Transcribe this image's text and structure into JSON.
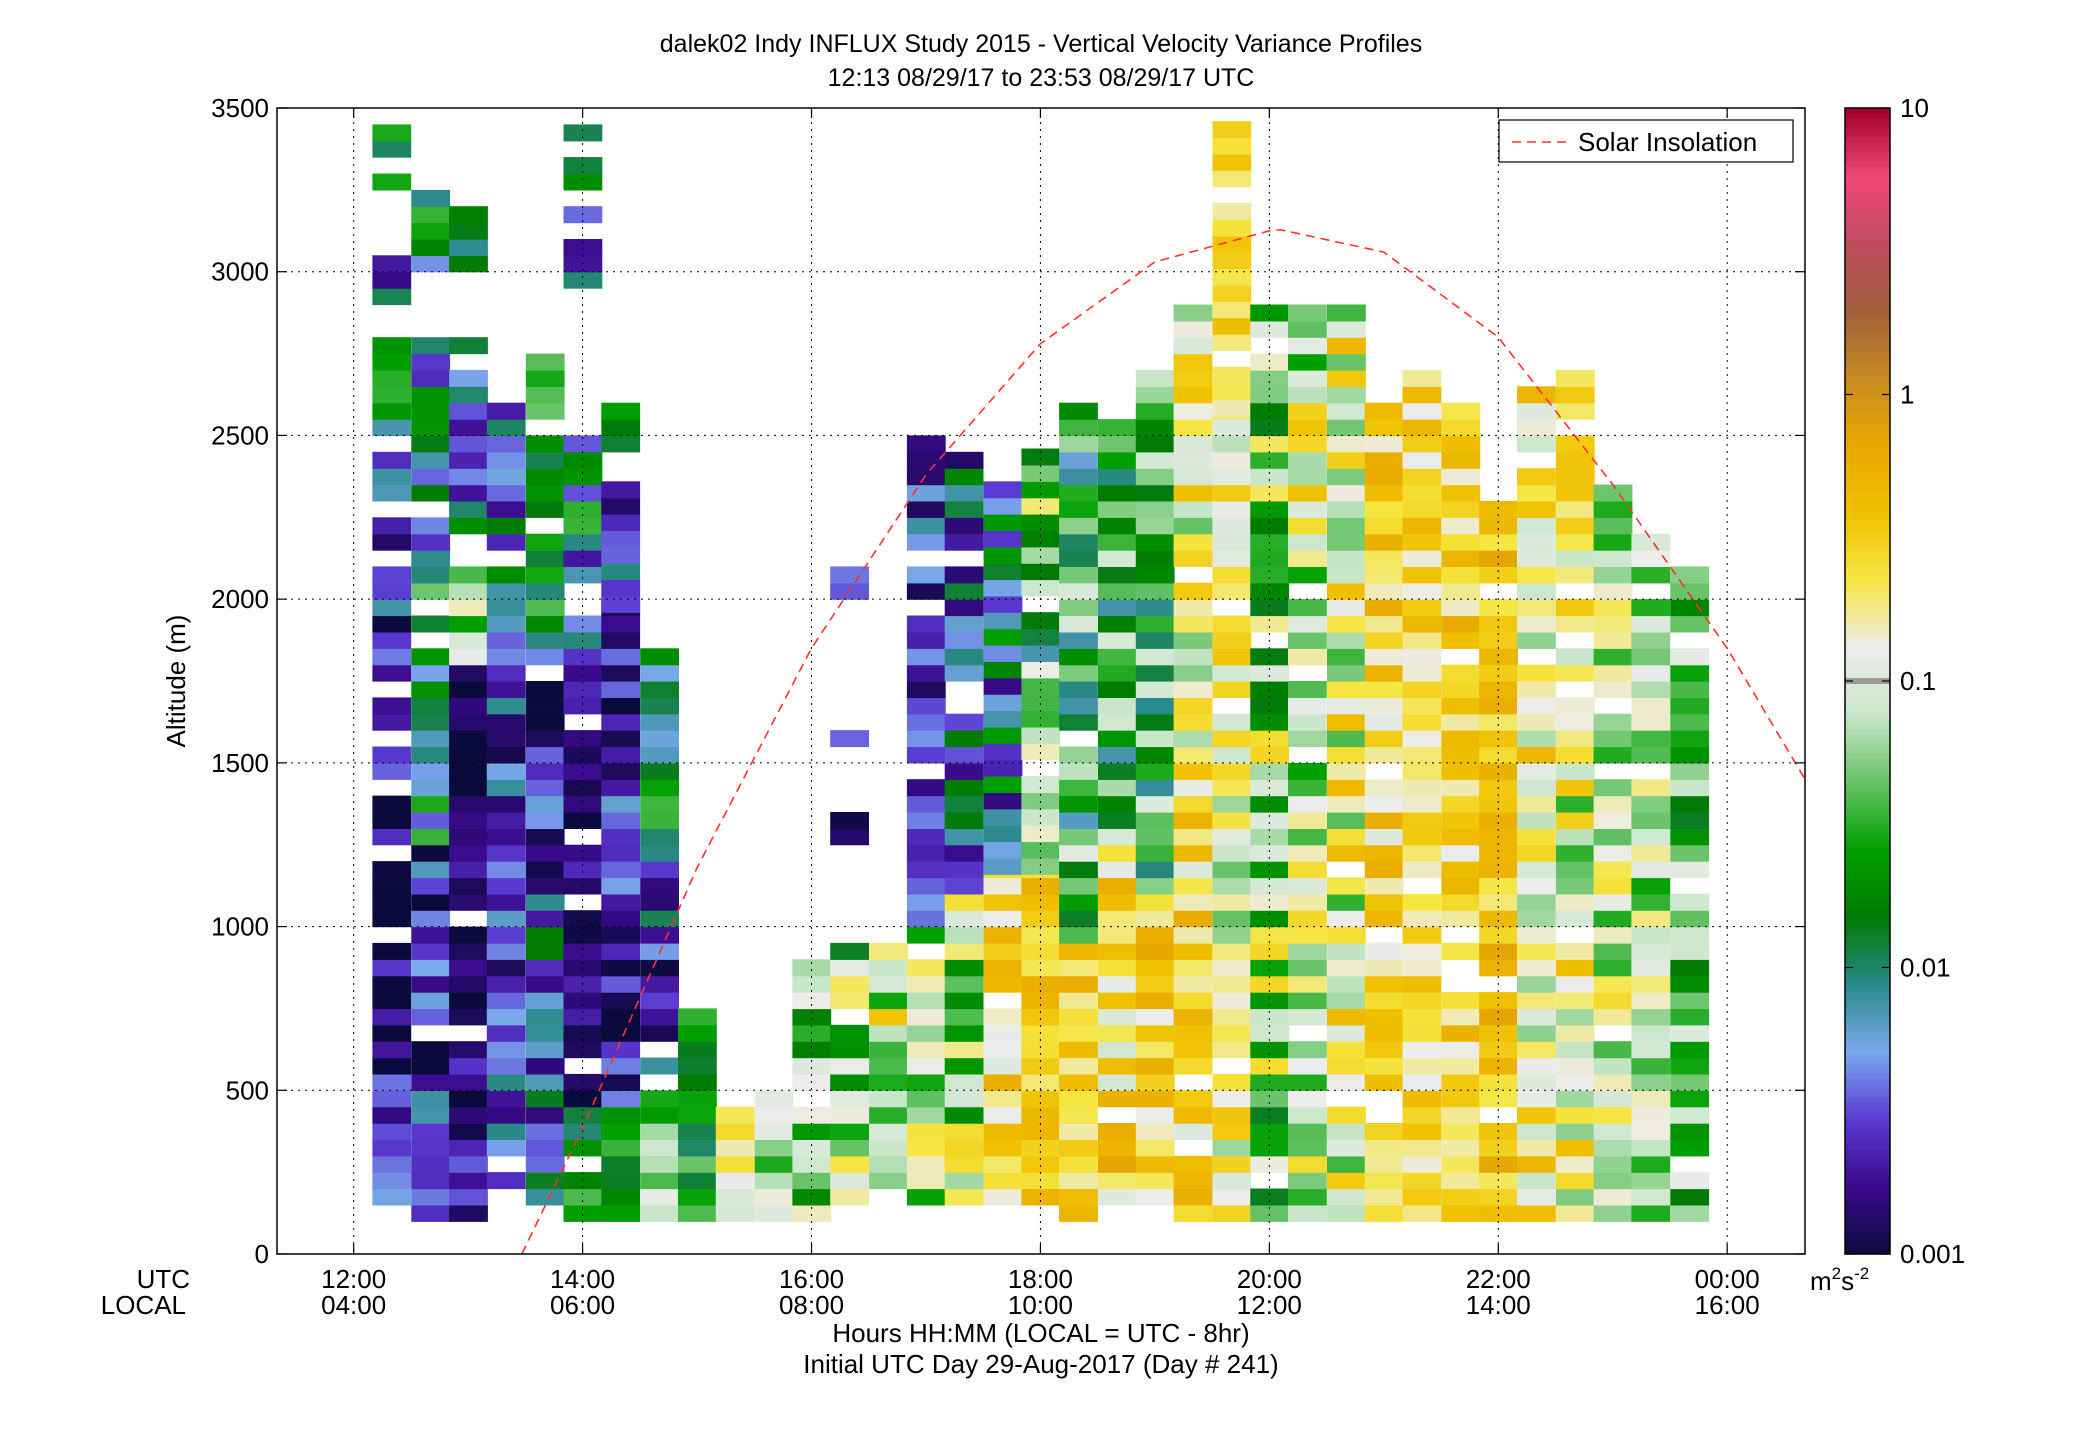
{
  "chart_data": {
    "type": "heatmap",
    "title": "dalek02 Indy INFLUX Study 2015 - Vertical Velocity Variance Profiles",
    "subtitle": "12:13 08/29/17 to 23:53 08/29/17  UTC",
    "ylabel": "Altitude (m)",
    "xlabel_line1": "Hours HH:MM  (LOCAL = UTC - 8hr)",
    "xlabel_line2": "Initial UTC Day 29-Aug-2017 (Day # 241)",
    "x_row_label_utc": "UTC",
    "x_row_label_local": "LOCAL",
    "x_range_hours": [
      11.33,
      24.68
    ],
    "y_range_m": [
      0,
      3500
    ],
    "xticks_hours": [
      12,
      14,
      16,
      18,
      20,
      22,
      24
    ],
    "xtick_labels_utc": [
      "12:00",
      "14:00",
      "16:00",
      "18:00",
      "20:00",
      "22:00",
      "00:00"
    ],
    "xtick_labels_local": [
      "04:00",
      "06:00",
      "08:00",
      "10:00",
      "12:00",
      "14:00",
      "16:00"
    ],
    "yticks": [
      0,
      500,
      1000,
      1500,
      2000,
      2500,
      3000,
      3500
    ],
    "ytick_labels": [
      "0",
      "500",
      "1000",
      "1500",
      "2000",
      "2500",
      "3000",
      "3500"
    ],
    "grid": true,
    "colorbar": {
      "scale": "log",
      "range": [
        0.001,
        10
      ],
      "ticks": [
        0.001,
        0.01,
        0.1,
        1,
        10
      ],
      "tick_labels": [
        "0.001",
        "0.01",
        "0.1",
        "1",
        "10"
      ],
      "units_base": "m",
      "units_exp1": "2",
      "units_mid": "s",
      "units_exp2": "-2",
      "colors": [
        "#0a0a3c",
        "#3a0a8c",
        "#5a3ad2",
        "#7aa8ec",
        "#2a8a8a",
        "#007a00",
        "#00a000",
        "#66c266",
        "#c8e6c8",
        "#ececec",
        "#f5e642",
        "#f0c000",
        "#e8a800",
        "#c88a20",
        "#a0603a",
        "#c04a60",
        "#f04878",
        "#a00028"
      ]
    },
    "legend": {
      "position": "top-right",
      "entries": [
        {
          "name": "Solar Insolation",
          "color": "#ff3030",
          "style": "dashed"
        }
      ]
    },
    "solar_insolation_curve": {
      "x_hours": [
        13.47,
        14,
        15,
        16,
        17,
        18,
        19,
        20,
        20.1,
        21,
        22,
        23,
        24,
        24.68
      ],
      "y": [
        0,
        385,
        1180,
        1850,
        2380,
        2780,
        3030,
        3125,
        3128,
        3060,
        2800,
        2350,
        1850,
        1450
      ]
    },
    "range_gate_m": 50,
    "time_step_min": 20,
    "x_hours": [
      12.33,
      12.67,
      13,
      13.33,
      13.67,
      14,
      14.33,
      14.67,
      15,
      15.33,
      15.67,
      16,
      16.33,
      16.67,
      17,
      17.33,
      17.67,
      18,
      18.33,
      18.67,
      19,
      19.33,
      19.67,
      20,
      20.33,
      20.67,
      21,
      21.33,
      21.67,
      22,
      22.33,
      22.67,
      23,
      23.33,
      23.67
    ],
    "log10_variance_columns": [
      {
        "segments": [
          [
            150,
            1500,
            -2.75,
            0.5
          ],
          [
            1500,
            2450,
            -2.5,
            0.6
          ],
          [
            2500,
            2760,
            -1.85,
            0.4
          ],
          [
            2900,
            3010,
            -2.3,
            0.5
          ],
          [
            3200,
            3310,
            -1.6,
            0.4
          ],
          [
            3300,
            3420,
            -1.75,
            0.3
          ]
        ]
      },
      {
        "segments": [
          [
            100,
            500,
            -2.55,
            0.45
          ],
          [
            500,
            1250,
            -2.65,
            0.5
          ],
          [
            1250,
            2250,
            -2.0,
            0.7
          ],
          [
            2300,
            2760,
            -2.1,
            0.6
          ],
          [
            3000,
            3210,
            -1.9,
            0.5
          ]
        ]
      },
      {
        "segments": [
          [
            100,
            1200,
            -2.8,
            0.35
          ],
          [
            1200,
            1800,
            -2.85,
            0.25
          ],
          [
            1800,
            2100,
            -1.4,
            0.6
          ],
          [
            2200,
            2660,
            -2.2,
            0.6
          ],
          [
            3000,
            3200,
            -1.95,
            0.2
          ],
          [
            2750,
            2800,
            -1.8,
            0.2
          ]
        ]
      },
      {
        "segments": [
          [
            150,
            1250,
            -2.45,
            0.5
          ],
          [
            1250,
            2000,
            -2.45,
            0.5
          ],
          [
            2000,
            2560,
            -2.2,
            0.6
          ]
        ]
      },
      {
        "segments": [
          [
            150,
            1100,
            -2.3,
            0.6
          ],
          [
            1100,
            1850,
            -2.6,
            0.5
          ],
          [
            1850,
            2460,
            -1.8,
            0.4
          ],
          [
            2550,
            2760,
            -1.3,
            0.3
          ]
        ]
      },
      {
        "segments": [
          [
            100,
            450,
            -1.8,
            0.4
          ],
          [
            450,
            1800,
            -2.85,
            0.25
          ],
          [
            1800,
            2460,
            -2.1,
            0.7
          ],
          [
            2900,
            3100,
            -2.4,
            0.5
          ],
          [
            3150,
            3410,
            -2.0,
            0.7
          ]
        ]
      },
      {
        "segments": [
          [
            100,
            450,
            -1.6,
            0.3
          ],
          [
            450,
            1150,
            -2.7,
            0.4
          ],
          [
            1150,
            1960,
            -2.6,
            0.5
          ],
          [
            1960,
            2360,
            -2.4,
            0.5
          ],
          [
            2450,
            2560,
            -1.8,
            0.2
          ]
        ]
      },
      {
        "segments": [
          [
            100,
            550,
            -1.3,
            0.4
          ],
          [
            550,
            1300,
            -2.4,
            0.6
          ],
          [
            1300,
            1810,
            -1.85,
            0.5
          ]
        ]
      },
      {
        "segments": [
          [
            100,
            500,
            -1.6,
            0.4
          ],
          [
            500,
            720,
            -1.8,
            0.4
          ]
        ]
      },
      {
        "segments": [
          [
            100,
            500,
            -0.8,
            0.3
          ]
        ]
      },
      {
        "segments": [
          [
            100,
            500,
            -1.0,
            0.6
          ]
        ]
      },
      {
        "segments": [
          [
            100,
            900,
            -1.3,
            0.5
          ]
        ]
      },
      {
        "segments": [
          [
            150,
            950,
            -1.2,
            0.7
          ],
          [
            1250,
            1310,
            -2.9,
            0.1
          ],
          [
            1500,
            1560,
            -2.4,
            0.1
          ],
          [
            2000,
            2060,
            -2.4,
            0.1
          ]
        ]
      },
      {
        "segments": [
          [
            150,
            950,
            -1.0,
            0.6
          ]
        ]
      },
      {
        "segments": [
          [
            150,
            1000,
            -1.1,
            0.5
          ],
          [
            1000,
            2060,
            -2.65,
            0.4
          ],
          [
            2150,
            2460,
            -2.5,
            0.4
          ]
        ]
      },
      {
        "segments": [
          [
            150,
            1100,
            -1.1,
            0.7
          ],
          [
            1100,
            2460,
            -2.35,
            0.6
          ]
        ]
      },
      {
        "segments": [
          [
            150,
            1160,
            -0.6,
            0.4
          ],
          [
            1160,
            2360,
            -2.2,
            0.8
          ]
        ]
      },
      {
        "segments": [
          [
            150,
            1160,
            -0.5,
            0.3
          ],
          [
            1160,
            2510,
            -1.4,
            0.8
          ]
        ]
      },
      {
        "segments": [
          [
            100,
            950,
            -0.5,
            0.3
          ],
          [
            950,
            2560,
            -1.6,
            0.7
          ]
        ]
      },
      {
        "segments": [
          [
            150,
            1250,
            -0.6,
            0.5
          ],
          [
            1250,
            2510,
            -1.6,
            0.6
          ]
        ]
      },
      {
        "segments": [
          [
            150,
            1100,
            -0.5,
            0.4
          ],
          [
            1100,
            2700,
            -1.5,
            0.6
          ]
        ]
      },
      {
        "segments": [
          [
            100,
            1400,
            -0.6,
            0.4
          ],
          [
            1400,
            2900,
            -0.9,
            0.5
          ]
        ]
      },
      {
        "segments": [
          [
            100,
            2560,
            -0.9,
            0.5
          ],
          [
            2560,
            3460,
            -0.6,
            0.2
          ]
        ]
      },
      {
        "segments": [
          [
            100,
            2860,
            -1.2,
            0.7
          ]
        ]
      },
      {
        "segments": [
          [
            100,
            2860,
            -1.0,
            0.6
          ]
        ]
      },
      {
        "segments": [
          [
            100,
            2860,
            -0.9,
            0.6
          ]
        ]
      },
      {
        "segments": [
          [
            100,
            2560,
            -0.6,
            0.4
          ]
        ]
      },
      {
        "segments": [
          [
            100,
            2660,
            -0.6,
            0.3
          ]
        ]
      },
      {
        "segments": [
          [
            100,
            2560,
            -0.55,
            0.35
          ]
        ]
      },
      {
        "segments": [
          [
            100,
            2300,
            -0.45,
            0.3
          ]
        ]
      },
      {
        "segments": [
          [
            100,
            2700,
            -0.8,
            0.5
          ]
        ]
      },
      {
        "segments": [
          [
            100,
            2660,
            -0.9,
            0.6
          ]
        ]
      },
      {
        "segments": [
          [
            100,
            2400,
            -1.05,
            0.5
          ]
        ]
      },
      {
        "segments": [
          [
            100,
            2200,
            -1.15,
            0.5
          ]
        ]
      },
      {
        "segments": [
          [
            100,
            2060,
            -1.4,
            0.5
          ]
        ]
      }
    ]
  }
}
